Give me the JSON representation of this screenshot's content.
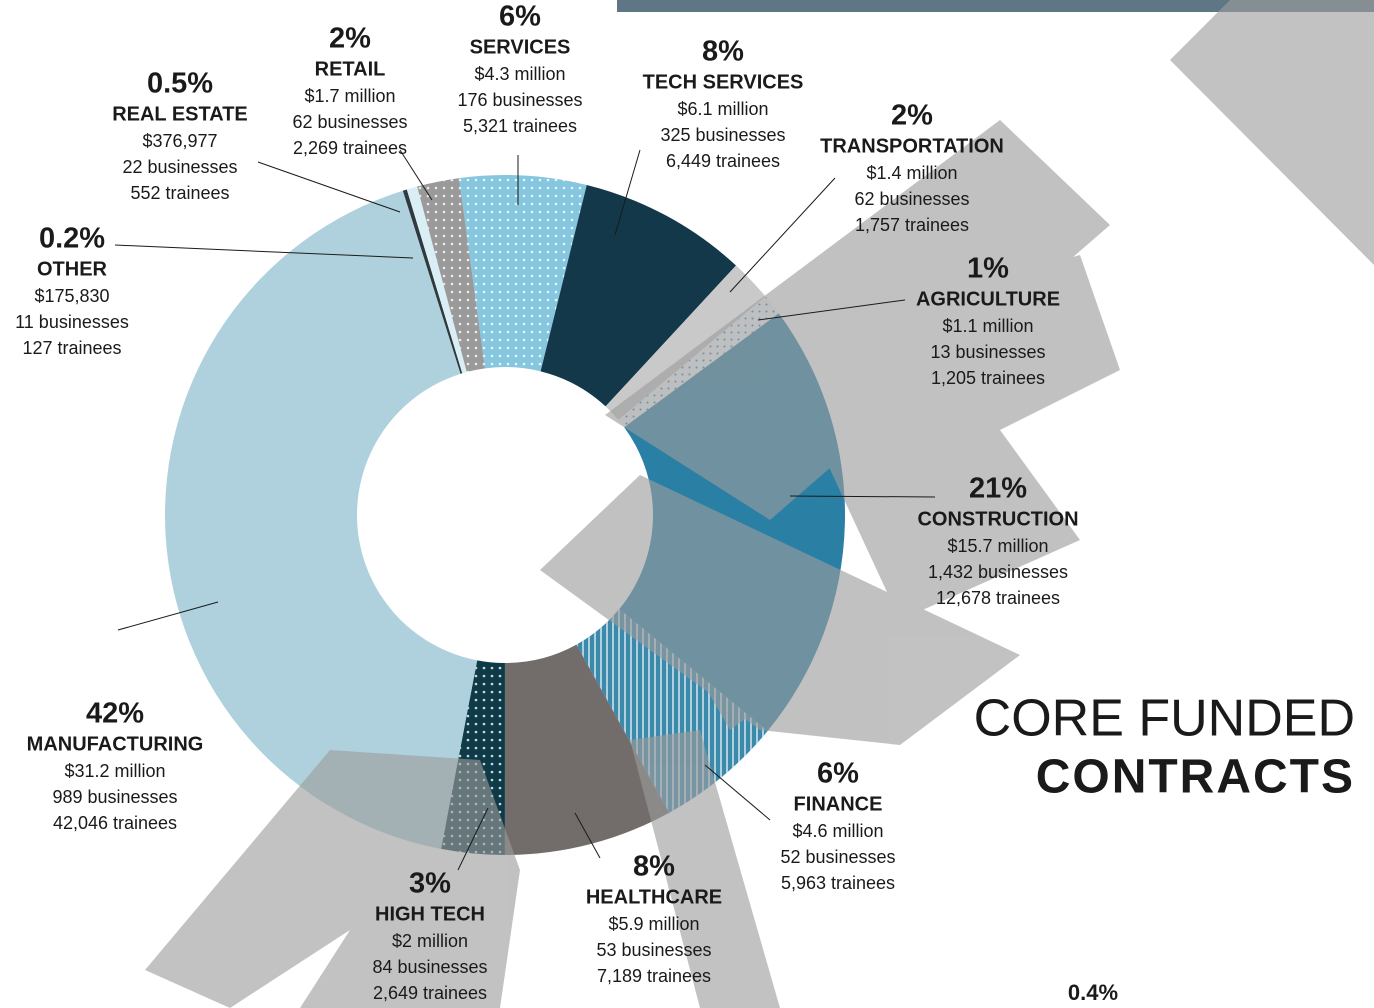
{
  "chart_data": {
    "type": "pie",
    "donut": true,
    "title": "CORE FUNDED",
    "subtitle": "CONTRACTS",
    "categories": [
      "OTHER",
      "REAL ESTATE",
      "RETAIL",
      "SERVICES",
      "TECH SERVICES",
      "TRANSPORTATION",
      "AGRICULTURE",
      "CONSTRUCTION",
      "FINANCE",
      "HEALTHCARE",
      "HIGH TECH",
      "MANUFACTURING"
    ],
    "values": [
      0.2,
      0.5,
      2,
      6,
      8,
      2,
      1,
      21,
      6,
      8,
      3,
      42
    ],
    "value_labels": [
      "0.2%",
      "0.5%",
      "2%",
      "6%",
      "8%",
      "2%",
      "1%",
      "21%",
      "6%",
      "8%",
      "3%",
      "42%"
    ],
    "funding": [
      "$175,830",
      "$376,977",
      "$1.7 million",
      "$4.3 million",
      "$6.1 million",
      "$1.4 million",
      "$1.1 million",
      "$15.7 million",
      "$4.6 million",
      "$5.9 million",
      "$2 million",
      "$31.2 million"
    ],
    "businesses": [
      "11 businesses",
      "22 businesses",
      "62 businesses",
      "176 businesses",
      "325 businesses",
      "62 businesses",
      "13 businesses",
      "1,432 businesses",
      "52 businesses",
      "53 businesses",
      "84 businesses",
      "989 businesses"
    ],
    "trainees": [
      "127 trainees",
      "552 trainees",
      "2,269 trainees",
      "5,321 trainees",
      "6,449 trainees",
      "1,757 trainees",
      "1,205 trainees",
      "12,678 trainees",
      "5,963 trainees",
      "7,189 trainees",
      "2,649 trainees",
      "42,046 trainees"
    ],
    "colors": [
      "#2f3a3e",
      "#d9eef5",
      "#9a9a9a",
      "#86c6de",
      "#12384a",
      "#c9c9c9",
      "#f4f8fa",
      "#2a7fa4",
      "#3b89ab",
      "#726c6b",
      "#0f3b48",
      "#aed1dd"
    ],
    "annotation": "0.4%"
  }
}
